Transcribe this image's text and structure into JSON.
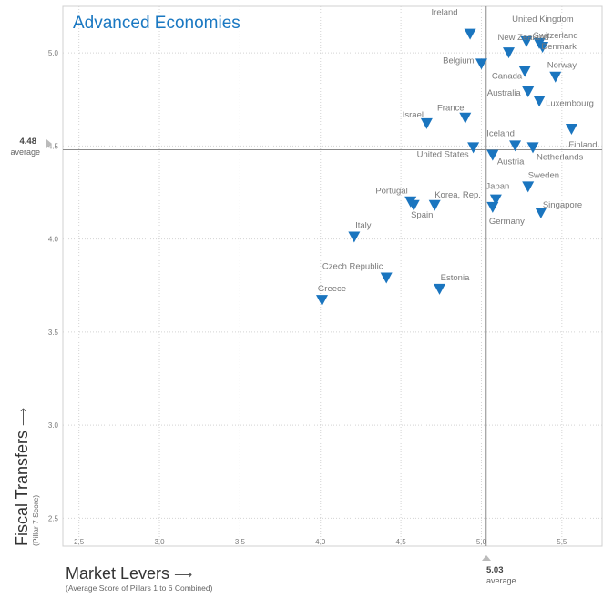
{
  "chart_data": {
    "type": "scatter",
    "title": "Advanced Economies",
    "xlabel": "Market Levers",
    "xlabel_sub": "(Average Score of Pillars 1 to 6 Combined)",
    "ylabel": "Fiscal Transfers",
    "ylabel_sub": "(Pillar 7 Score)",
    "xlim": [
      2.4,
      5.75
    ],
    "ylim": [
      2.35,
      5.25
    ],
    "xticks": [
      "2.5",
      "3.0",
      "3.5",
      "4.0",
      "4.5",
      "5.0",
      "5.5"
    ],
    "yticks": [
      "2.5",
      "3.0",
      "3.5",
      "4.0",
      "4.5",
      "5.0"
    ],
    "grid": true,
    "marker": "triangle-down",
    "marker_color": "#1a75bf",
    "x_average": {
      "value": 5.03,
      "label_value": "5.03",
      "label_text": "average"
    },
    "y_average": {
      "value": 4.48,
      "label_value": "4.48",
      "label_text": "average"
    },
    "points": [
      {
        "name": "Ireland",
        "x": 4.93,
        "y": 5.1
      },
      {
        "name": "United Kingdom",
        "x": 5.28,
        "y": 5.06
      },
      {
        "name": "New Zealand",
        "x": 5.17,
        "y": 5.0
      },
      {
        "name": "Switzerland",
        "x": 5.36,
        "y": 5.05
      },
      {
        "name": "Denmark",
        "x": 5.38,
        "y": 5.03
      },
      {
        "name": "Belgium",
        "x": 5.0,
        "y": 4.94
      },
      {
        "name": "Norway",
        "x": 5.46,
        "y": 4.87
      },
      {
        "name": "Canada",
        "x": 5.27,
        "y": 4.9
      },
      {
        "name": "Australia",
        "x": 5.29,
        "y": 4.79
      },
      {
        "name": "Luxembourg",
        "x": 5.36,
        "y": 4.74
      },
      {
        "name": "France",
        "x": 4.9,
        "y": 4.65
      },
      {
        "name": "Israel",
        "x": 4.66,
        "y": 4.62
      },
      {
        "name": "Finland",
        "x": 5.56,
        "y": 4.59
      },
      {
        "name": "Iceland",
        "x": 5.21,
        "y": 4.5
      },
      {
        "name": "Netherlands",
        "x": 5.32,
        "y": 4.49
      },
      {
        "name": "United States",
        "x": 4.95,
        "y": 4.49
      },
      {
        "name": "Austria",
        "x": 5.07,
        "y": 4.45
      },
      {
        "name": "Sweden",
        "x": 5.29,
        "y": 4.28
      },
      {
        "name": "Portugal",
        "x": 4.56,
        "y": 4.2
      },
      {
        "name": "Spain",
        "x": 4.58,
        "y": 4.18
      },
      {
        "name": "Korea, Rep.",
        "x": 4.71,
        "y": 4.18
      },
      {
        "name": "Japan",
        "x": 5.09,
        "y": 4.21
      },
      {
        "name": "Germany",
        "x": 5.07,
        "y": 4.17
      },
      {
        "name": "Singapore",
        "x": 5.37,
        "y": 4.14
      },
      {
        "name": "Italy",
        "x": 4.21,
        "y": 4.01
      },
      {
        "name": "Czech Republic",
        "x": 4.41,
        "y": 3.79
      },
      {
        "name": "Estonia",
        "x": 4.74,
        "y": 3.73
      },
      {
        "name": "Greece",
        "x": 4.01,
        "y": 3.67
      }
    ]
  }
}
